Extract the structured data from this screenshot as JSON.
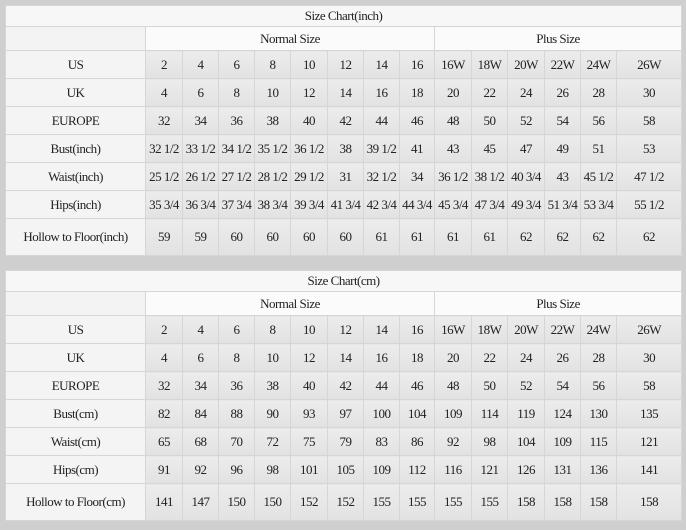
{
  "normal_label": "Normal Size",
  "plus_label": "Plus Size",
  "tables": [
    {
      "title": "Size Chart(inch)",
      "rows": [
        {
          "label": "US",
          "values": [
            "2",
            "4",
            "6",
            "8",
            "10",
            "12",
            "14",
            "16",
            "16W",
            "18W",
            "20W",
            "22W",
            "24W",
            "26W"
          ]
        },
        {
          "label": "UK",
          "values": [
            "4",
            "6",
            "8",
            "10",
            "12",
            "14",
            "16",
            "18",
            "20",
            "22",
            "24",
            "26",
            "28",
            "30"
          ]
        },
        {
          "label": "EUROPE",
          "values": [
            "32",
            "34",
            "36",
            "38",
            "40",
            "42",
            "44",
            "46",
            "48",
            "50",
            "52",
            "54",
            "56",
            "58"
          ]
        },
        {
          "label": "Bust(inch)",
          "values": [
            "32 1/2",
            "33 1/2",
            "34 1/2",
            "35 1/2",
            "36 1/2",
            "38",
            "39 1/2",
            "41",
            "43",
            "45",
            "47",
            "49",
            "51",
            "53"
          ]
        },
        {
          "label": "Waist(inch)",
          "values": [
            "25 1/2",
            "26 1/2",
            "27 1/2",
            "28 1/2",
            "29 1/2",
            "31",
            "32 1/2",
            "34",
            "36 1/2",
            "38 1/2",
            "40 3/4",
            "43",
            "45 1/2",
            "47 1/2"
          ]
        },
        {
          "label": "Hips(inch)",
          "values": [
            "35 3/4",
            "36 3/4",
            "37 3/4",
            "38 3/4",
            "39 3/4",
            "41 3/4",
            "42 3/4",
            "44 3/4",
            "45 3/4",
            "47 3/4",
            "49 3/4",
            "51 3/4",
            "53 3/4",
            "55 1/2"
          ]
        },
        {
          "label": "Hollow to Floor(inch)",
          "values": [
            "59",
            "59",
            "60",
            "60",
            "60",
            "60",
            "61",
            "61",
            "61",
            "61",
            "62",
            "62",
            "62",
            "62"
          ]
        }
      ]
    },
    {
      "title": "Size Chart(cm)",
      "rows": [
        {
          "label": "US",
          "values": [
            "2",
            "4",
            "6",
            "8",
            "10",
            "12",
            "14",
            "16",
            "16W",
            "18W",
            "20W",
            "22W",
            "24W",
            "26W"
          ]
        },
        {
          "label": "UK",
          "values": [
            "4",
            "6",
            "8",
            "10",
            "12",
            "14",
            "16",
            "18",
            "20",
            "22",
            "24",
            "26",
            "28",
            "30"
          ]
        },
        {
          "label": "EUROPE",
          "values": [
            "32",
            "34",
            "36",
            "38",
            "40",
            "42",
            "44",
            "46",
            "48",
            "50",
            "52",
            "54",
            "56",
            "58"
          ]
        },
        {
          "label": "Bust(cm)",
          "values": [
            "82",
            "84",
            "88",
            "90",
            "93",
            "97",
            "100",
            "104",
            "109",
            "114",
            "119",
            "124",
            "130",
            "135"
          ]
        },
        {
          "label": "Waist(cm)",
          "values": [
            "65",
            "68",
            "70",
            "72",
            "75",
            "79",
            "83",
            "86",
            "92",
            "98",
            "104",
            "109",
            "115",
            "121"
          ]
        },
        {
          "label": "Hips(cm)",
          "values": [
            "91",
            "92",
            "96",
            "98",
            "101",
            "105",
            "109",
            "112",
            "116",
            "121",
            "126",
            "131",
            "136",
            "141"
          ]
        },
        {
          "label": "Hollow to Floor(cm)",
          "values": [
            "141",
            "147",
            "150",
            "150",
            "152",
            "152",
            "155",
            "155",
            "155",
            "155",
            "158",
            "158",
            "158",
            "158"
          ]
        }
      ]
    }
  ]
}
